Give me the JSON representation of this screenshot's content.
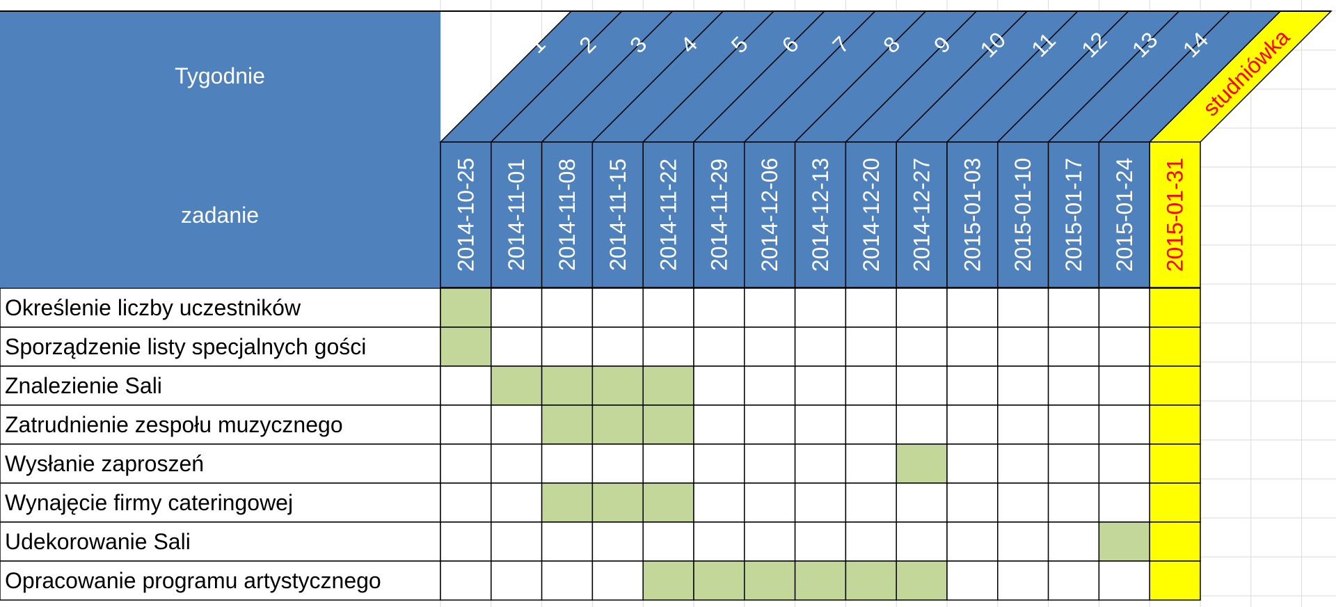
{
  "chart_data": {
    "type": "gantt",
    "header": {
      "weeks_label": "Tygodnie",
      "task_label": "zadanie"
    },
    "weeks": [
      "1",
      "2",
      "3",
      "4",
      "5",
      "6",
      "7",
      "8",
      "9",
      "10",
      "11",
      "12",
      "13",
      "14",
      "studniówka"
    ],
    "dates": [
      "2014-10-25",
      "2014-11-01",
      "2014-11-08",
      "2014-11-15",
      "2014-11-22",
      "2014-11-29",
      "2014-12-06",
      "2014-12-13",
      "2014-12-20",
      "2014-12-27",
      "2015-01-03",
      "2015-01-10",
      "2015-01-17",
      "2015-01-24",
      "2015-01-31"
    ],
    "tasks": [
      {
        "name": "Określenie liczby uczestników",
        "weeks": [
          1
        ]
      },
      {
        "name": "Sporządzenie listy specjalnych gości",
        "weeks": [
          1
        ]
      },
      {
        "name": "Znalezienie Sali",
        "weeks": [
          2,
          3,
          4,
          5
        ]
      },
      {
        "name": "Zatrudnienie zespołu muzycznego",
        "weeks": [
          3,
          4,
          5
        ]
      },
      {
        "name": "Wysłanie zaproszeń",
        "weeks": [
          10
        ]
      },
      {
        "name": "Wynajęcie firmy cateringowej",
        "weeks": [
          3,
          4,
          5
        ]
      },
      {
        "name": "Udekorowanie Sali",
        "weeks": [
          14
        ]
      },
      {
        "name": "Opracowanie programu artystycznego",
        "weeks": [
          5,
          6,
          7,
          8,
          9,
          10
        ]
      }
    ],
    "highlight_column": 15,
    "colors": {
      "header": "#4f81bd",
      "task_bar": "#c4d79b",
      "highlight": "#ffff00",
      "highlight_text": "#ff0000",
      "grid": "#d9d9d9"
    }
  }
}
